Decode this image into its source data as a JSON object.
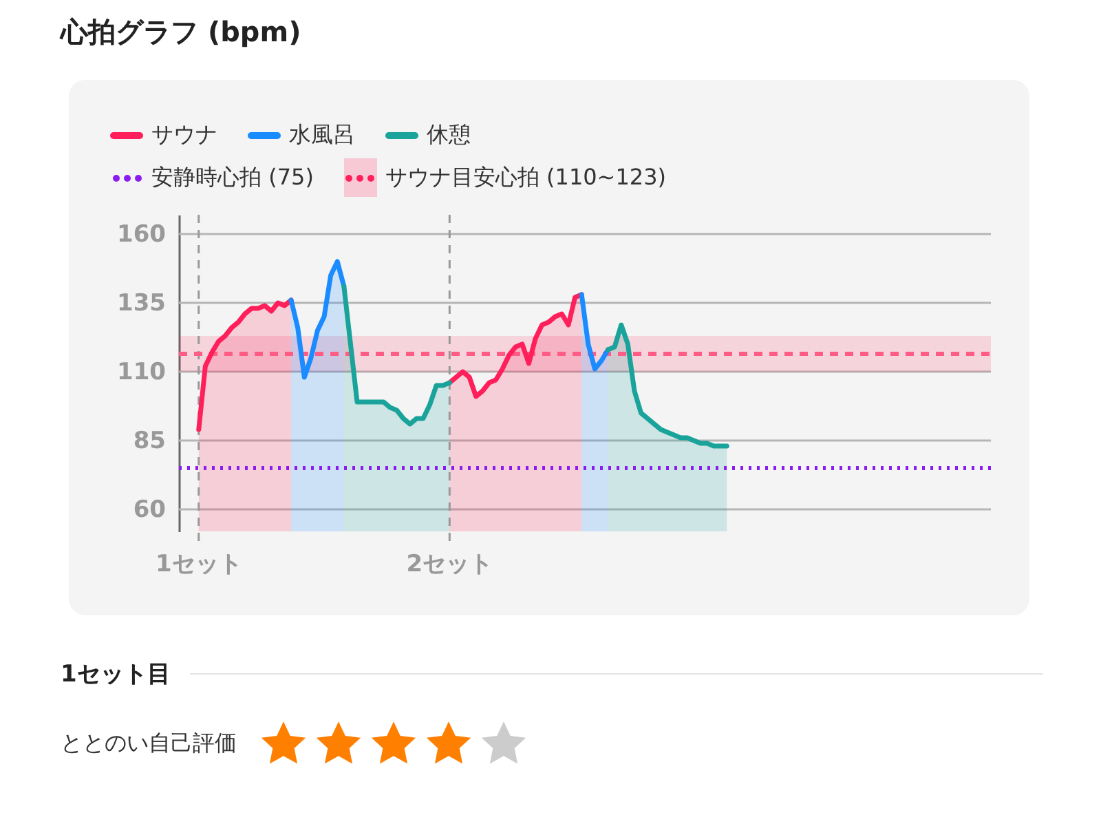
{
  "chart_data": {
    "type": "area",
    "title": "心拍グラフ (bpm)",
    "categories": [
      "1セット",
      null,
      null,
      null,
      null,
      null,
      null,
      null,
      null,
      null,
      null,
      null,
      null,
      null,
      null,
      null,
      null,
      null,
      null,
      null,
      null,
      null,
      null,
      null,
      null,
      null,
      null,
      null,
      null,
      null,
      null,
      null,
      null,
      null,
      null,
      null,
      null,
      null,
      "2セット",
      null,
      null,
      null,
      null,
      null,
      null,
      null,
      null,
      null,
      null,
      null,
      null,
      null,
      null,
      null,
      null,
      null,
      null,
      null,
      null,
      null,
      null,
      null,
      null,
      null,
      null,
      null,
      null,
      null,
      null,
      null,
      null,
      null,
      null,
      null,
      null,
      null,
      null,
      null,
      null,
      null,
      null,
      null,
      null,
      null,
      null,
      null,
      null,
      null,
      null,
      null,
      null,
      null,
      null,
      null,
      null,
      null,
      null,
      null,
      null,
      null,
      null,
      null,
      null,
      null,
      null,
      null,
      null,
      null,
      null,
      null,
      null,
      null,
      null,
      null,
      null,
      null,
      null,
      null
    ],
    "series": [
      {
        "name": "サウナ",
        "color": "#ff1f5a",
        "values": [
          89,
          112,
          117,
          121,
          123,
          126,
          128,
          131,
          133,
          133,
          134,
          132,
          135,
          134,
          136,
          null,
          null,
          null,
          null,
          null,
          null,
          null,
          null,
          null,
          null,
          null,
          null,
          null,
          null,
          null,
          null,
          null,
          null,
          null,
          null,
          null,
          null,
          null,
          106,
          108,
          110,
          108,
          101,
          103,
          106,
          107,
          111,
          116,
          119,
          120,
          113,
          122,
          127,
          128,
          130,
          131,
          127,
          137,
          138,
          null,
          null,
          null,
          null,
          null,
          null,
          null,
          null,
          null,
          null,
          null,
          null,
          null,
          null,
          null,
          null,
          null,
          null,
          null,
          null,
          null,
          null,
          null,
          null,
          null,
          null,
          null,
          null,
          null,
          null,
          null,
          null,
          null,
          null,
          null,
          null,
          null,
          null,
          null,
          null,
          null,
          null,
          null,
          null,
          null,
          null,
          null,
          null,
          null,
          null,
          null,
          null,
          null,
          null,
          null,
          null,
          null,
          null,
          null
        ]
      },
      {
        "name": "水風呂",
        "color": "#1a8cff",
        "values": [
          null,
          null,
          null,
          null,
          null,
          null,
          null,
          null,
          null,
          null,
          null,
          null,
          null,
          null,
          136,
          126,
          108,
          115,
          125,
          130,
          145,
          150,
          141,
          null,
          null,
          null,
          null,
          null,
          null,
          null,
          null,
          null,
          null,
          null,
          null,
          null,
          null,
          null,
          null,
          null,
          null,
          null,
          null,
          null,
          null,
          null,
          null,
          null,
          null,
          null,
          null,
          null,
          null,
          null,
          null,
          null,
          null,
          null,
          138,
          120,
          111,
          114,
          118,
          null,
          null,
          null,
          null,
          null,
          null,
          null,
          null,
          null,
          null,
          null,
          null,
          null,
          null,
          null,
          null,
          null,
          null,
          null,
          null,
          null,
          null,
          null,
          null,
          null,
          null,
          null,
          null,
          null,
          null,
          null,
          null,
          null,
          null,
          null,
          null,
          null,
          null,
          null,
          null,
          null,
          null,
          null,
          null,
          null,
          null,
          null,
          null,
          null,
          null,
          null,
          null,
          null,
          null,
          null
        ]
      },
      {
        "name": "休憩",
        "color": "#1aa39a",
        "values": [
          null,
          null,
          null,
          null,
          null,
          null,
          null,
          null,
          null,
          null,
          null,
          null,
          null,
          null,
          null,
          null,
          null,
          null,
          null,
          null,
          null,
          null,
          141,
          120,
          99,
          99,
          99,
          99,
          99,
          97,
          96,
          93,
          91,
          93,
          93,
          98,
          105,
          105,
          106,
          null,
          null,
          null,
          null,
          null,
          null,
          null,
          null,
          null,
          null,
          null,
          null,
          null,
          null,
          null,
          null,
          null,
          null,
          null,
          null,
          null,
          null,
          null,
          118,
          119,
          127,
          120,
          103,
          95,
          93,
          91,
          89,
          88,
          87,
          86,
          86,
          85,
          84,
          84,
          83,
          83,
          83,
          null,
          null,
          null,
          null,
          null,
          null,
          null,
          null,
          null,
          null,
          null,
          null,
          null,
          null,
          null,
          null,
          null,
          null,
          null,
          null,
          null,
          null,
          null,
          null,
          null,
          null,
          null,
          null,
          null,
          null,
          null,
          null,
          null,
          null,
          null,
          null,
          null
        ]
      }
    ],
    "ylim": [
      52,
      167
    ],
    "yticks": [
      60,
      85,
      110,
      135,
      160
    ],
    "grid": "y",
    "tick_labels": "y",
    "legend": "top left",
    "line_style": "solid",
    "ref_lines": [
      {
        "axis": "y",
        "value": 75,
        "label": "安静時心拍 (75)",
        "color": "#8b1cf0",
        "line_style": "dotted"
      },
      {
        "axis": "y",
        "value": 116.5,
        "label": null,
        "color": "#ff5c85",
        "line_style": "dashed"
      }
    ],
    "bands": [
      {
        "axis": "y",
        "from": 110,
        "to": 123,
        "label": "サウナ目安心拍 (110~123)",
        "color": "#ff1f5a"
      }
    ],
    "annotations": [
      "1セット目",
      "ととのい自己評価"
    ]
  }
}
